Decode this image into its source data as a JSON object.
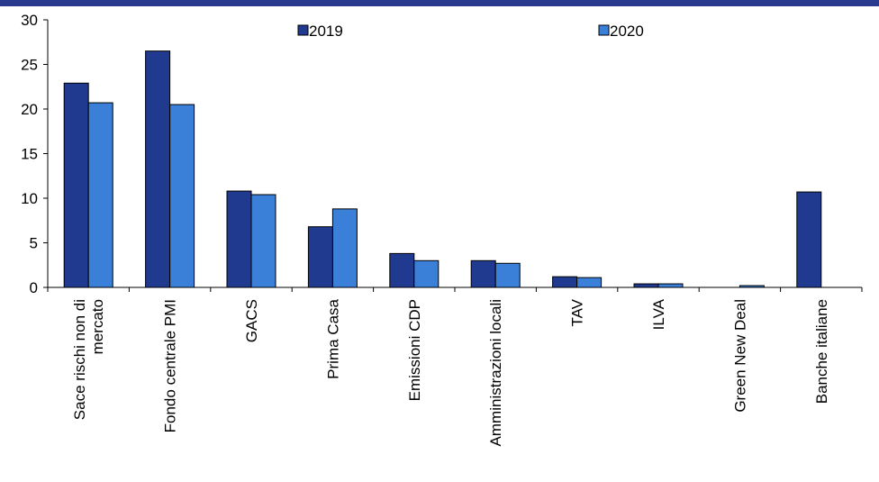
{
  "chart_data": {
    "type": "bar",
    "title": "",
    "xlabel": "",
    "ylabel": "",
    "ylim": [
      0,
      30
    ],
    "yticks": [
      0,
      5,
      10,
      15,
      20,
      25,
      30
    ],
    "grid": false,
    "legend_position": "top",
    "categories": [
      "Sace rischi non di mercato",
      "Fondo centrale PMI",
      "GACS",
      "Prima Casa",
      "Emissioni CDP",
      "Amministrazioni locali",
      "TAV",
      "ILVA",
      "Green New Deal",
      "Banche italiane"
    ],
    "series": [
      {
        "name": "2019",
        "color": "#203a8f",
        "values": [
          22.9,
          26.5,
          10.8,
          6.8,
          3.8,
          3.0,
          1.2,
          0.4,
          0.0,
          10.7
        ]
      },
      {
        "name": "2020",
        "color": "#3a7fd8",
        "values": [
          20.7,
          20.5,
          10.4,
          8.8,
          3.0,
          2.7,
          1.1,
          0.4,
          0.2,
          null
        ]
      }
    ]
  }
}
